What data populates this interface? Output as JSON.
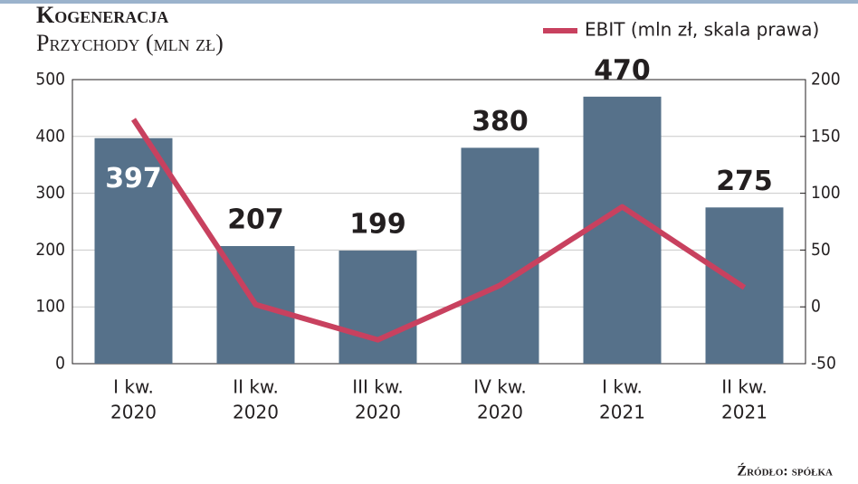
{
  "chart_data": {
    "type": "bar",
    "title": "Kogeneracja",
    "subtitle": "Przychody (mln zł)",
    "source": "Źródło: spółka",
    "categories": [
      [
        "I kw.",
        "2020"
      ],
      [
        "II kw.",
        "2020"
      ],
      [
        "III kw.",
        "2020"
      ],
      [
        "IV kw.",
        "2020"
      ],
      [
        "I kw.",
        "2021"
      ],
      [
        "II kw.",
        "2021"
      ]
    ],
    "series": [
      {
        "name": "Przychody",
        "color": "#56718a",
        "values": [
          397,
          207,
          199,
          380,
          470,
          275
        ]
      },
      {
        "name": "EBIT (mln zł, skala prawa)",
        "color": "#c8415f",
        "axis": "y2",
        "type": "line",
        "values": [
          165,
          2,
          -29,
          19,
          88,
          17
        ]
      }
    ],
    "ylim": [
      0,
      500
    ],
    "yticks": [
      0,
      100,
      200,
      300,
      400,
      500
    ],
    "y2lim": [
      -50,
      200
    ],
    "y2ticks": [
      -50,
      0,
      50,
      100,
      150,
      200
    ],
    "grid": true,
    "legend": "top-right"
  }
}
